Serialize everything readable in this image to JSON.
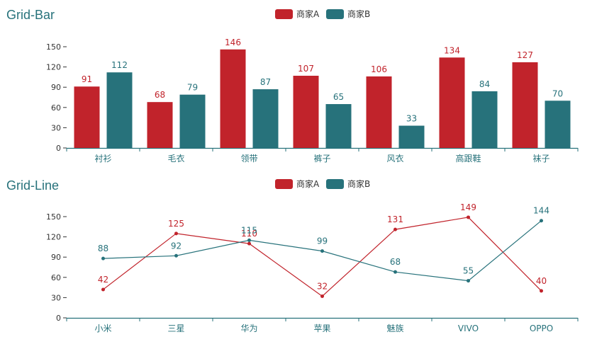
{
  "colors": {
    "a": "#c1232b",
    "b": "#27727b",
    "axis": "#27727b",
    "text": "#333333"
  },
  "chart_data": [
    {
      "type": "bar",
      "title": "Grid-Bar",
      "legend": [
        "商家A",
        "商家B"
      ],
      "legend_position": "top-center",
      "categories": [
        "衬衫",
        "毛衣",
        "领带",
        "裤子",
        "风衣",
        "高跟鞋",
        "袜子"
      ],
      "series": [
        {
          "name": "商家A",
          "values": [
            91,
            68,
            146,
            107,
            106,
            134,
            127
          ]
        },
        {
          "name": "商家B",
          "values": [
            112,
            79,
            87,
            65,
            33,
            84,
            70
          ]
        }
      ],
      "yticks": [
        0,
        30,
        60,
        90,
        120,
        150
      ],
      "ylim": [
        0,
        150
      ],
      "grid": false
    },
    {
      "type": "line",
      "title": "Grid-Line",
      "legend": [
        "商家A",
        "商家B"
      ],
      "legend_position": "top-center",
      "categories": [
        "小米",
        "三星",
        "华为",
        "苹果",
        "魅族",
        "VIVO",
        "OPPO"
      ],
      "series": [
        {
          "name": "商家A",
          "values": [
            42,
            125,
            110,
            32,
            131,
            149,
            40
          ]
        },
        {
          "name": "商家B",
          "values": [
            88,
            92,
            115,
            99,
            68,
            55,
            144
          ]
        }
      ],
      "yticks": [
        0,
        30,
        60,
        90,
        120,
        150
      ],
      "ylim": [
        0,
        150
      ],
      "grid": false
    }
  ]
}
